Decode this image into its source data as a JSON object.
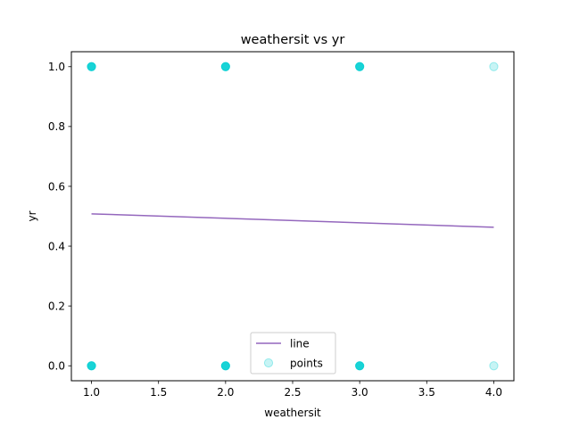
{
  "chart_data": {
    "type": "scatter",
    "title": "weathersit vs yr",
    "xlabel": "weathersit",
    "ylabel": "yr",
    "xlim": [
      0.85,
      4.15
    ],
    "ylim": [
      -0.05,
      1.05
    ],
    "xticks": [
      1.0,
      1.5,
      2.0,
      2.5,
      3.0,
      3.5,
      4.0
    ],
    "xtick_labels": [
      "1.0",
      "1.5",
      "2.0",
      "2.5",
      "3.0",
      "3.5",
      "4.0"
    ],
    "yticks": [
      0.0,
      0.2,
      0.4,
      0.6,
      0.8,
      1.0
    ],
    "ytick_labels": [
      "0.0",
      "0.2",
      "0.4",
      "0.6",
      "0.8",
      "1.0"
    ],
    "grid": false,
    "legend": {
      "placement": "bottom-center",
      "entries": [
        "line",
        "points"
      ]
    },
    "series": [
      {
        "name": "points",
        "kind": "scatter",
        "color": "#00CED1",
        "x": [
          1,
          1,
          2,
          2,
          3,
          3,
          4,
          4
        ],
        "y": [
          1,
          0,
          1,
          0,
          1,
          0,
          1,
          0
        ],
        "density": [
          "dense",
          "dense",
          "dense",
          "dense",
          "dense",
          "dense",
          "sparse",
          "sparse"
        ]
      },
      {
        "name": "line",
        "kind": "line",
        "color": "#9467BD",
        "x": [
          1,
          4
        ],
        "y": [
          0.508,
          0.463
        ]
      }
    ]
  }
}
